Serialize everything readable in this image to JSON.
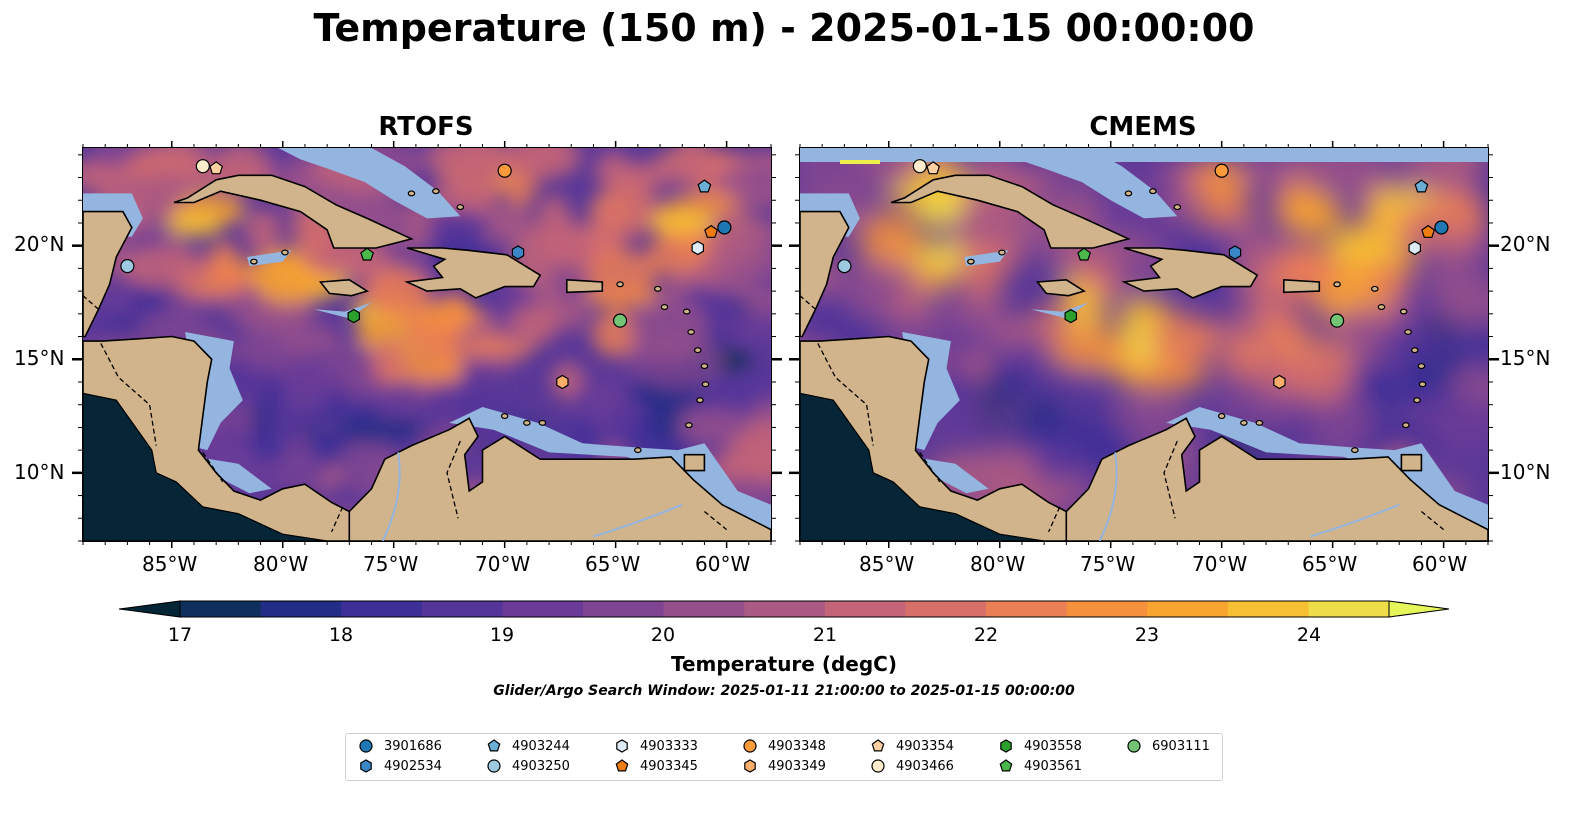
{
  "title": "Temperature (150 m) - 2025-01-15 00:00:00",
  "panels": [
    {
      "title": "RTOFS"
    },
    {
      "title": "CMEMS"
    }
  ],
  "lat_labels": [
    "20°N",
    "15°N",
    "10°N"
  ],
  "lon_labels": [
    "85°W",
    "80°W",
    "75°W",
    "70°W",
    "65°W",
    "60°W"
  ],
  "extent": {
    "lon_min": -89,
    "lon_max": -58,
    "lat_min": 7,
    "lat_max": 24.3
  },
  "colorbar": {
    "label": "Temperature (degC)",
    "ticks": [
      "17",
      "18",
      "19",
      "20",
      "21",
      "22",
      "23",
      "24"
    ],
    "vmin": 17,
    "vmax": 24.5,
    "step": 0.5,
    "colors": [
      "#062537",
      "#0f2f5c",
      "#232d86",
      "#3c2f98",
      "#55359a",
      "#6a3c98",
      "#7f4592",
      "#95508c",
      "#ab5a83",
      "#c36478",
      "#d8706a",
      "#ea7e55",
      "#f5903d",
      "#f8a52f",
      "#f6c032",
      "#eedc49",
      "#e6f55a"
    ]
  },
  "search_window": "Glider/Argo Search Window: 2025-01-11 21:00:00 to 2025-01-15 00:00:00",
  "land_color": "#d2b48c",
  "shelf_color": "#94b5e0",
  "floats": [
    {
      "id": "3901686",
      "marker": "circle",
      "color": "#1f77b4",
      "lon": -60.1,
      "lat": 20.8
    },
    {
      "id": "4902534",
      "marker": "hexagon",
      "color": "#3a87c8",
      "lon": -69.4,
      "lat": 19.7
    },
    {
      "id": "4903244",
      "marker": "pentagon",
      "color": "#6baed6",
      "lon": -61.0,
      "lat": 22.6
    },
    {
      "id": "4903250",
      "marker": "circle",
      "color": "#9ecae1",
      "lon": -87.0,
      "lat": 19.1
    },
    {
      "id": "4903333",
      "marker": "hexagon",
      "color": "#deebf7",
      "lon": -61.3,
      "lat": 19.9
    },
    {
      "id": "4903345",
      "marker": "pentagon",
      "color": "#f07d12",
      "lon": -60.7,
      "lat": 20.6
    },
    {
      "id": "4903348",
      "marker": "circle",
      "color": "#fd9a3a",
      "lon": -70.0,
      "lat": 23.3
    },
    {
      "id": "4903349",
      "marker": "hexagon",
      "color": "#fdae6b",
      "lon": -67.4,
      "lat": 14.0
    },
    {
      "id": "4903354",
      "marker": "pentagon",
      "color": "#fdd0a2",
      "lon": -83.0,
      "lat": 23.4
    },
    {
      "id": "4903466",
      "marker": "circle",
      "color": "#feeccc",
      "lon": -83.6,
      "lat": 23.5
    },
    {
      "id": "4903558",
      "marker": "hexagon",
      "color": "#2ca02c",
      "lon": -76.8,
      "lat": 16.9
    },
    {
      "id": "4903561",
      "marker": "pentagon",
      "color": "#4cb84c",
      "lon": -76.2,
      "lat": 19.6
    },
    {
      "id": "6903111",
      "marker": "circle",
      "color": "#74c476",
      "lon": -64.8,
      "lat": 16.7
    }
  ]
}
